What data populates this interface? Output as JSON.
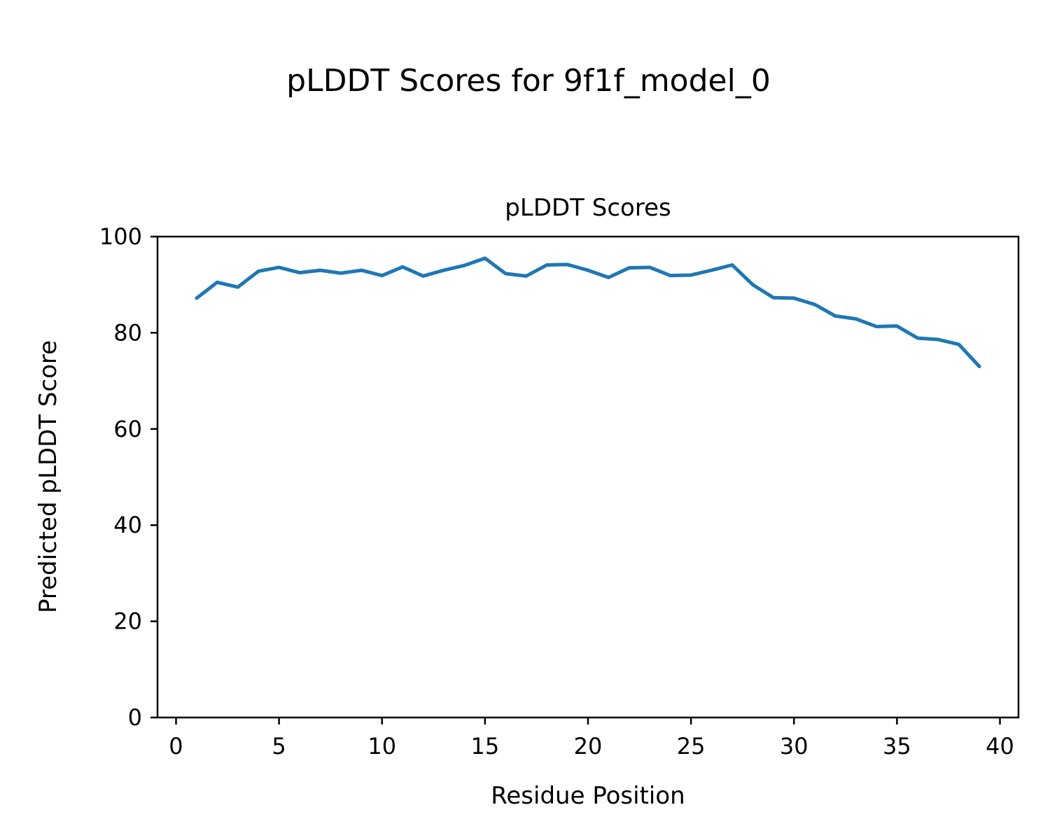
{
  "figure": {
    "suptitle": "pLDDT Scores for 9f1f_model_0"
  },
  "chart_data": {
    "type": "line",
    "title": "pLDDT Scores",
    "xlabel": "Residue Position",
    "ylabel": "Predicted pLDDT Score",
    "x": [
      1,
      2,
      3,
      4,
      5,
      6,
      7,
      8,
      9,
      10,
      11,
      12,
      13,
      14,
      15,
      16,
      17,
      18,
      19,
      20,
      21,
      22,
      23,
      24,
      25,
      26,
      27,
      28,
      29,
      30,
      31,
      32,
      33,
      34,
      35,
      36,
      37,
      38,
      39
    ],
    "y": [
      87.2,
      90.5,
      89.5,
      92.8,
      93.6,
      92.5,
      93.0,
      92.4,
      93.0,
      91.9,
      93.7,
      91.8,
      93.0,
      94.0,
      95.5,
      92.3,
      91.8,
      94.1,
      94.2,
      93.0,
      91.5,
      93.5,
      93.6,
      91.9,
      92.0,
      93.0,
      94.1,
      90.0,
      87.3,
      87.2,
      85.9,
      83.5,
      82.9,
      81.3,
      81.4,
      78.9,
      78.6,
      77.6,
      73.0
    ],
    "xlim": [
      -0.9,
      40.9
    ],
    "ylim": [
      0,
      100
    ],
    "xticks": [
      0,
      5,
      10,
      15,
      20,
      25,
      30,
      35,
      40
    ],
    "yticks": [
      0,
      20,
      40,
      60,
      80,
      100
    ],
    "line_color": "#1f77b4",
    "axis_color": "#000000",
    "grid": false,
    "legend_position": "none"
  }
}
